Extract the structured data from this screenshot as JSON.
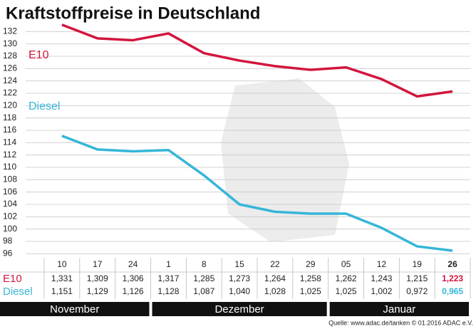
{
  "chart_data": {
    "type": "line",
    "title": "Kraftstoffpreise in Deutschland",
    "categories": [
      "10",
      "17",
      "24",
      "1",
      "8",
      "15",
      "22",
      "29",
      "05",
      "12",
      "19",
      "26"
    ],
    "months": [
      "November",
      "Dezember",
      "Januar"
    ],
    "series": [
      {
        "name": "E10",
        "color": "#d2153e",
        "values": [
          133.1,
          130.9,
          130.6,
          131.7,
          128.5,
          127.3,
          126.4,
          125.8,
          126.2,
          124.3,
          121.5,
          122.3
        ],
        "value_labels": [
          "1,331",
          "1,309",
          "1,306",
          "1,317",
          "1,285",
          "1,273",
          "1,264",
          "1,258",
          "1,262",
          "1,243",
          "1,215",
          "1,223"
        ]
      },
      {
        "name": "Diesel",
        "color": "#35b6d8",
        "values": [
          115.1,
          112.9,
          112.6,
          112.8,
          108.7,
          104.0,
          102.8,
          102.5,
          102.5,
          100.2,
          97.2,
          96.5
        ],
        "value_labels": [
          "1,151",
          "1,129",
          "1,126",
          "1,128",
          "1,087",
          "1,040",
          "1,028",
          "1,025",
          "1,025",
          "1,002",
          "0,972",
          "0,965"
        ]
      }
    ],
    "ylim": [
      95,
      134
    ],
    "yticks": [
      96,
      98,
      100,
      102,
      104,
      106,
      108,
      110,
      112,
      114,
      116,
      118,
      120,
      122,
      124,
      126,
      128,
      130,
      132
    ],
    "grid": true,
    "source": "Quelle: www.adac.de/tanken  © 01.2016  ADAC e.V."
  }
}
